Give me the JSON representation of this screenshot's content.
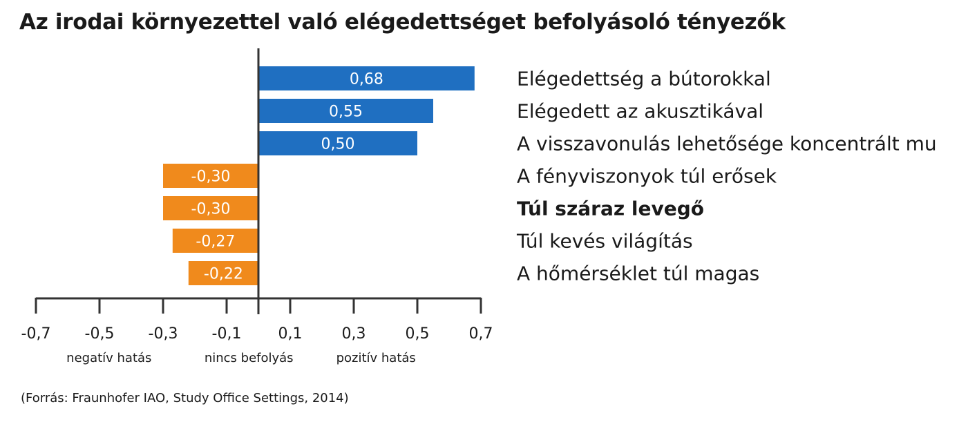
{
  "title": "Az irodai környezettel való elégedettséget befolyásoló tényezők",
  "source": "(Forrás: Fraunhofer IAO, Study Office Settings, 2014)",
  "colors": {
    "positive": "#1f6fc1",
    "negative": "#f08a1c",
    "axis": "#333333"
  },
  "chart_data": {
    "type": "bar",
    "orientation": "horizontal",
    "categories": [
      "Elégedettség a bútorokkal",
      "Elégedett az akusztikával",
      "A visszavonulás lehetősége koncentrált mu",
      "A fényviszonyok túl erősek",
      "Túl száraz levegő",
      "Túl kevés világítás",
      "A hőmérséklet túl magas"
    ],
    "values": [
      0.68,
      0.55,
      0.5,
      -0.3,
      -0.3,
      -0.27,
      -0.22
    ],
    "value_labels": [
      "0,68",
      "0,55",
      "0,50",
      "-0,30",
      "-0,30",
      "-0,27",
      "-0,22"
    ],
    "bold_index": 4,
    "xlim": [
      -0.7,
      0.7
    ],
    "xticks": [
      -0.7,
      -0.5,
      -0.3,
      -0.1,
      0.1,
      0.3,
      0.5,
      0.7
    ],
    "xtick_labels": [
      "-0,7",
      "-0,5",
      "-0,3",
      "-0,1",
      "0,1",
      "0,3",
      "0,5",
      "0,7"
    ],
    "axis_notes": [
      "negatív hatás",
      "nincs befolyás",
      "pozitív hatás"
    ],
    "grid": false,
    "legend": "none"
  }
}
